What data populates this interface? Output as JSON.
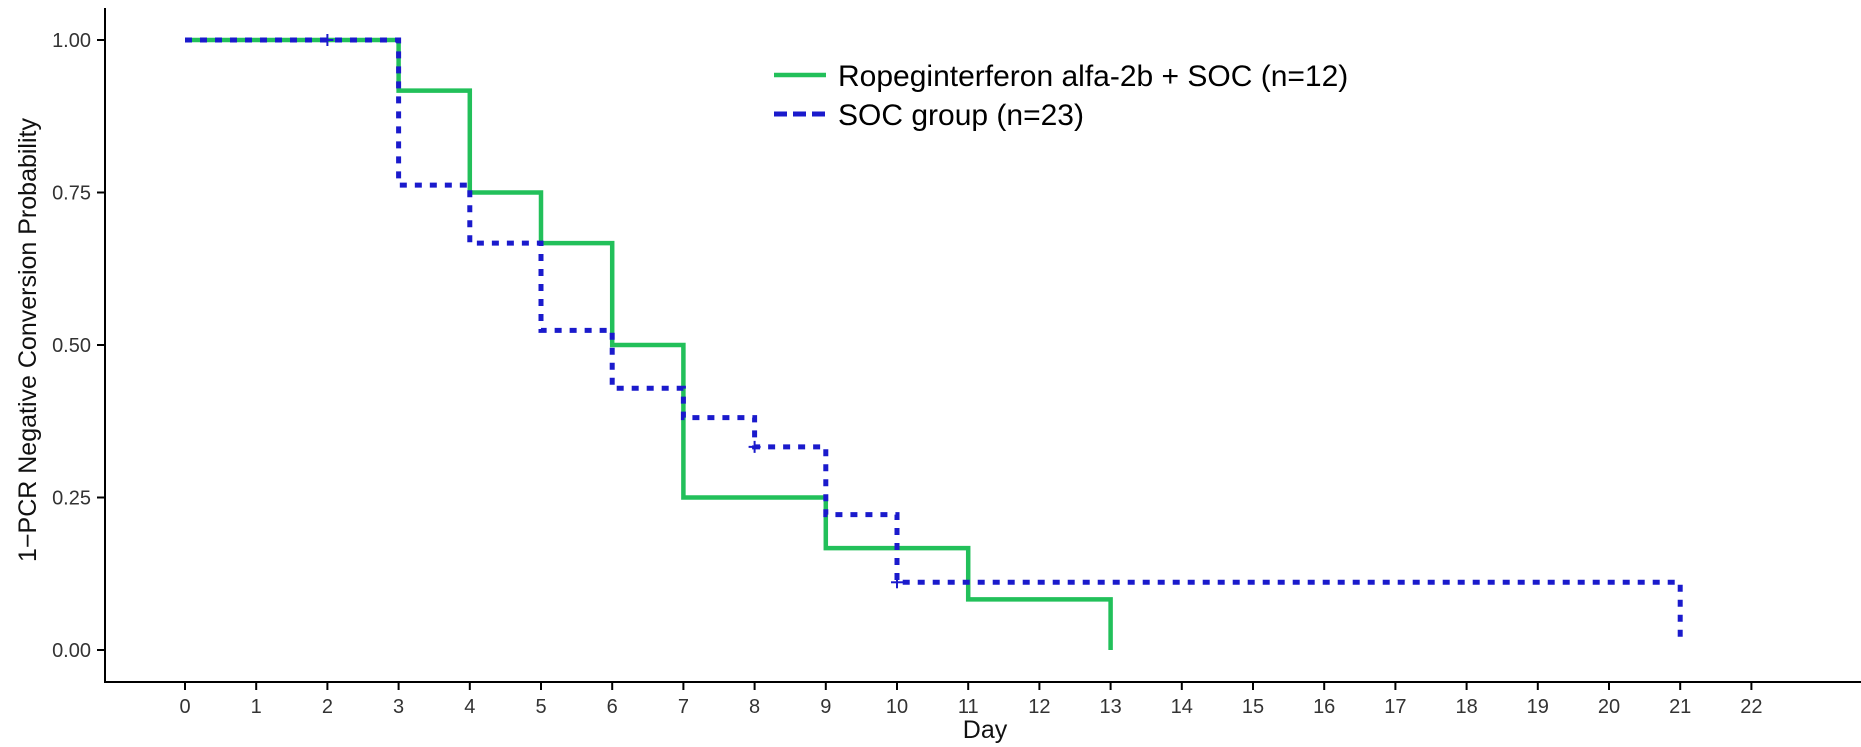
{
  "chart_data": {
    "type": "line",
    "subtype": "kaplan-meier-step",
    "title": "",
    "xlabel": "Day",
    "ylabel": "1−PCR Negative Conversion Probability",
    "xlim": [
      0,
      22
    ],
    "ylim": [
      0,
      1
    ],
    "x_ticks": [
      "0",
      "1",
      "2",
      "3",
      "4",
      "5",
      "6",
      "7",
      "8",
      "9",
      "10",
      "11",
      "12",
      "13",
      "14",
      "15",
      "16",
      "17",
      "18",
      "19",
      "20",
      "21",
      "22"
    ],
    "y_ticks": [
      "0.00",
      "0.25",
      "0.50",
      "0.75",
      "1.00"
    ],
    "y_tick_values": [
      0,
      0.25,
      0.5,
      0.75,
      1
    ],
    "grid": false,
    "legend_position": "top-center",
    "series": [
      {
        "name": "Ropeginterferon alfa-2b + SOC (n=12)",
        "color": "#22c05a",
        "line_style": "solid",
        "x": [
          0,
          3,
          4,
          5,
          6,
          7,
          9,
          11,
          13
        ],
        "y": [
          1.0,
          0.917,
          0.75,
          0.667,
          0.5,
          0.25,
          0.167,
          0.083,
          0.0
        ],
        "censored": [],
        "end_x": 13
      },
      {
        "name": "SOC group (n=23)",
        "color": "#1a1acc",
        "line_style": "dotted",
        "x": [
          0,
          3,
          4,
          5,
          6,
          7,
          8,
          9,
          10,
          21
        ],
        "y": [
          1.0,
          0.762,
          0.667,
          0.524,
          0.429,
          0.381,
          0.333,
          0.222,
          0.111,
          0.01
        ],
        "censored": [
          {
            "x": 2,
            "y": 1.0
          },
          {
            "x": 8,
            "y": 0.333
          },
          {
            "x": 10,
            "y": 0.111
          }
        ],
        "end_x": 21
      }
    ]
  }
}
